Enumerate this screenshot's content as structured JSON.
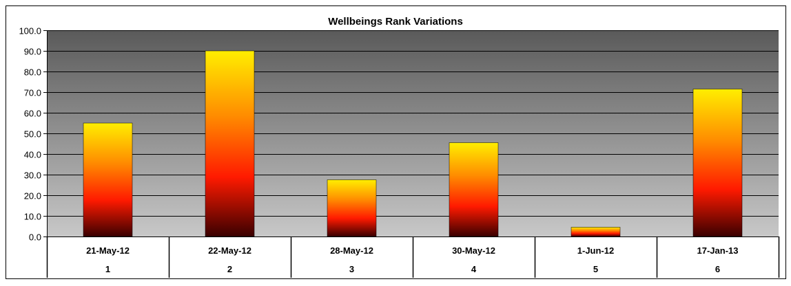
{
  "chart_data": {
    "type": "bar",
    "title": "Wellbeings Rank Variations",
    "xlabel": "",
    "ylabel": "",
    "categories": [
      {
        "date": "21-May-12",
        "index": "1"
      },
      {
        "date": "22-May-12",
        "index": "2"
      },
      {
        "date": "28-May-12",
        "index": "3"
      },
      {
        "date": "30-May-12",
        "index": "4"
      },
      {
        "date": "1-Jun-12",
        "index": "5"
      },
      {
        "date": "17-Jan-13",
        "index": "6"
      }
    ],
    "values": [
      55,
      90,
      27.5,
      45.5,
      4.5,
      71.5
    ],
    "ylim": [
      0,
      100
    ],
    "yticks": [
      "0.0",
      "10.0",
      "20.0",
      "30.0",
      "40.0",
      "50.0",
      "60.0",
      "70.0",
      "80.0",
      "90.0",
      "100.0"
    ],
    "ytick_values": [
      0,
      10,
      20,
      30,
      40,
      50,
      60,
      70,
      80,
      90,
      100
    ],
    "grid": true,
    "legend": "none",
    "colors": {
      "bar_top": "#ffee00",
      "bar_mid": "#ff8c00",
      "bar_red": "#ff1a00",
      "bar_bottom": "#3a0000",
      "plot_top": "#5a5a5a",
      "plot_bottom": "#c8c8c8",
      "gridline": "#000000"
    }
  }
}
